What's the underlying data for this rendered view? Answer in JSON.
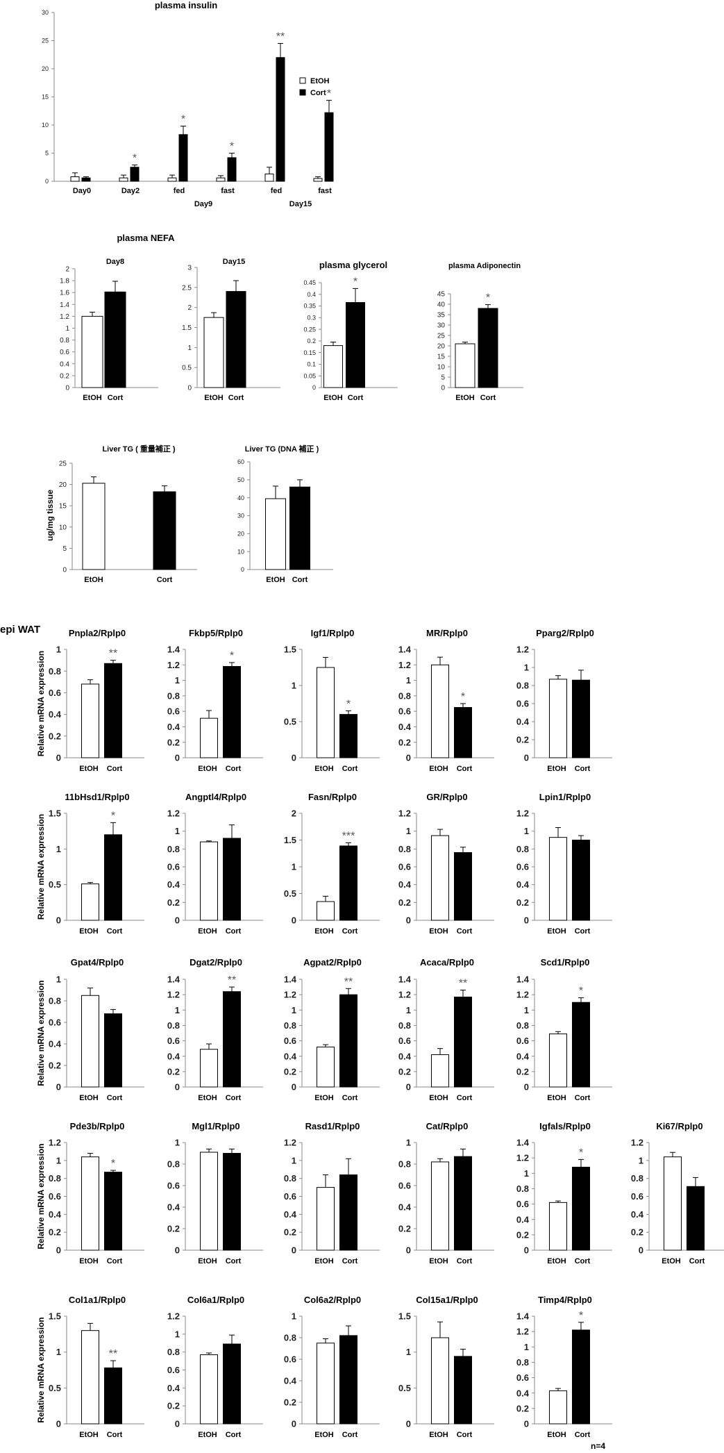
{
  "section_label": "epi WAT",
  "footnote": "n=4",
  "shared_ylabel": "Relative mRNA expression",
  "colors": {
    "etoh_fill": "#ffffff",
    "cort_fill": "#000000",
    "axis": "#888888",
    "star": "#555555"
  },
  "insulin_legend": {
    "etoh": "EtOH",
    "cort": "Cort"
  },
  "insulin_groups": [
    "Day9",
    "Day15"
  ],
  "chart_data": [
    {
      "id": "insulin",
      "type": "bar",
      "title": "plasma insulin",
      "ylabel": "",
      "ylim": [
        0,
        30
      ],
      "yticks": [
        "0",
        "5",
        "10",
        "15",
        "20",
        "25",
        "30"
      ],
      "categories": [
        "Day0",
        "Day2",
        "fed",
        "fast",
        "fed",
        "fast"
      ],
      "series": [
        {
          "name": "EtOH",
          "values": [
            0.8,
            0.6,
            0.6,
            0.6,
            1.3,
            0.5
          ],
          "errors": [
            0.7,
            0.5,
            0.5,
            0.4,
            1.2,
            0.3
          ]
        },
        {
          "name": "Cort",
          "values": [
            0.6,
            2.5,
            8.3,
            4.2,
            22,
            12.2
          ],
          "errors": [
            0.2,
            0.4,
            1.5,
            0.8,
            2.5,
            2.2
          ]
        }
      ],
      "stars": [
        "",
        "*",
        "*",
        "*",
        "**",
        "*"
      ]
    },
    {
      "id": "nefa8",
      "type": "bar",
      "title": "Day8",
      "ylabel": "",
      "ylim": [
        0,
        2
      ],
      "yticks": [
        "0",
        "0.2",
        "0.4",
        "0.6",
        "0.8",
        "1",
        "1.2",
        "1.4",
        "1.6",
        "1.8",
        "2"
      ],
      "categories": [
        "EtOH",
        "Cort"
      ],
      "values": [
        1.2,
        1.61
      ],
      "errors": [
        0.07,
        0.18
      ],
      "stars": [
        "",
        ""
      ]
    },
    {
      "id": "nefa15",
      "type": "bar",
      "title": "Day15",
      "ylabel": "",
      "ylim": [
        0,
        3
      ],
      "yticks": [
        "0",
        "0.5",
        "1",
        "1.5",
        "2",
        "2.5",
        "3"
      ],
      "categories": [
        "EtOH",
        "Cort"
      ],
      "values": [
        1.75,
        2.4
      ],
      "errors": [
        0.12,
        0.27
      ],
      "stars": [
        "",
        ""
      ]
    },
    {
      "id": "glycerol",
      "type": "bar",
      "title": "plasma glycerol",
      "ylabel": "",
      "ylim": [
        0,
        0.45
      ],
      "yticks": [
        "0",
        "0.05",
        "0.1",
        "0.15",
        "0.2",
        "0.25",
        "0.3",
        "0.35",
        "0.4",
        "0.45"
      ],
      "categories": [
        "EtOH",
        "Cort"
      ],
      "values": [
        0.18,
        0.365
      ],
      "errors": [
        0.015,
        0.06
      ],
      "stars": [
        "",
        "*"
      ]
    },
    {
      "id": "adipo",
      "type": "bar",
      "title": "plasma Adiponectin",
      "ylabel": "",
      "ylim": [
        0,
        45
      ],
      "yticks": [
        "0",
        "5",
        "10",
        "15",
        "20",
        "25",
        "30",
        "35",
        "40",
        "45"
      ],
      "categories": [
        "EtOH",
        "Cort"
      ],
      "values": [
        21,
        38
      ],
      "errors": [
        0.8,
        1.8
      ],
      "stars": [
        "",
        "*"
      ]
    },
    {
      "id": "livertg1",
      "type": "bar",
      "title": "Liver TG ( 重量補正 )",
      "ylabel": "ug/mg tissue",
      "ylim": [
        0,
        25
      ],
      "yticks": [
        "0",
        "5",
        "10",
        "15",
        "20",
        "25"
      ],
      "categories": [
        "EtOH",
        "Cort"
      ],
      "values": [
        20.3,
        18.3
      ],
      "errors": [
        1.5,
        1.4
      ],
      "stars": [
        "",
        ""
      ]
    },
    {
      "id": "livertg2",
      "type": "bar",
      "title": "Liver TG (DNA 補正 )",
      "ylabel": "",
      "ylim": [
        0,
        60
      ],
      "yticks": [
        "0",
        "10",
        "20",
        "30",
        "40",
        "50",
        "60"
      ],
      "categories": [
        "EtOH",
        "Cort"
      ],
      "values": [
        39.5,
        46
      ],
      "errors": [
        7,
        4
      ],
      "stars": [
        "",
        ""
      ]
    },
    {
      "id": "pnpla2",
      "type": "bar",
      "title": "Pnpla2/Rplp0",
      "ylabel": "Relative mRNA expression",
      "ylim": [
        0,
        1
      ],
      "yticks": [
        "0",
        "0.2",
        "0.4",
        "0.6",
        "0.8",
        "1"
      ],
      "categories": [
        "EtOH",
        "Cort"
      ],
      "values": [
        0.68,
        0.87
      ],
      "errors": [
        0.04,
        0.03
      ],
      "stars": [
        "",
        "**"
      ]
    },
    {
      "id": "fkbp5",
      "type": "bar",
      "title": "Fkbp5/Rplp0",
      "ylabel": "",
      "ylim": [
        0,
        1.4
      ],
      "yticks": [
        "0",
        "0.2",
        "0.4",
        "0.6",
        "0.8",
        "1",
        "1.2",
        "1.4"
      ],
      "categories": [
        "EtOH",
        "Cort"
      ],
      "values": [
        0.51,
        1.18
      ],
      "errors": [
        0.1,
        0.05
      ],
      "stars": [
        "",
        "*"
      ]
    },
    {
      "id": "igf1",
      "type": "bar",
      "title": "Igf1/Rplp0",
      "ylabel": "",
      "ylim": [
        0,
        1.5
      ],
      "yticks": [
        "0",
        "0.5",
        "1",
        "1.5"
      ],
      "categories": [
        "EtOH",
        "Cort"
      ],
      "values": [
        1.25,
        0.6
      ],
      "errors": [
        0.14,
        0.05
      ],
      "stars": [
        "",
        "*"
      ]
    },
    {
      "id": "mr",
      "type": "bar",
      "title": "MR/Rplp0",
      "ylabel": "",
      "ylim": [
        0,
        1.4
      ],
      "yticks": [
        "0",
        "0.2",
        "0.4",
        "0.6",
        "0.8",
        "1",
        "1.2",
        "1.4"
      ],
      "categories": [
        "EtOH",
        "Cort"
      ],
      "values": [
        1.2,
        0.65
      ],
      "errors": [
        0.1,
        0.05
      ],
      "stars": [
        "",
        "*"
      ]
    },
    {
      "id": "pparg2",
      "type": "bar",
      "title": "Pparg2/Rplp0",
      "ylabel": "",
      "ylim": [
        0,
        1.2
      ],
      "yticks": [
        "0",
        "0.2",
        "0.4",
        "0.6",
        "0.8",
        "1",
        "1.2"
      ],
      "categories": [
        "EtOH",
        "Cort"
      ],
      "values": [
        0.87,
        0.86
      ],
      "errors": [
        0.04,
        0.11
      ],
      "stars": [
        "",
        ""
      ]
    },
    {
      "id": "hsd11b1",
      "type": "bar",
      "title": "11bHsd1/Rplp0",
      "ylabel": "Relative mRNA expression",
      "ylim": [
        0,
        1.5
      ],
      "yticks": [
        "0",
        "0.5",
        "1",
        "1.5"
      ],
      "categories": [
        "EtOH",
        "Cort"
      ],
      "values": [
        0.51,
        1.2
      ],
      "errors": [
        0.02,
        0.17
      ],
      "stars": [
        "",
        "*"
      ]
    },
    {
      "id": "angptl4",
      "type": "bar",
      "title": "Angptl4/Rplp0",
      "ylabel": "",
      "ylim": [
        0,
        1.2
      ],
      "yticks": [
        "0",
        "0.2",
        "0.4",
        "0.6",
        "0.8",
        "1",
        "1.2"
      ],
      "categories": [
        "EtOH",
        "Cort"
      ],
      "values": [
        0.88,
        0.92
      ],
      "errors": [
        0.01,
        0.15
      ],
      "stars": [
        "",
        ""
      ]
    },
    {
      "id": "fasn",
      "type": "bar",
      "title": "Fasn/Rplp0",
      "ylabel": "",
      "ylim": [
        0,
        2
      ],
      "yticks": [
        "0",
        "0.5",
        "1",
        "1.5",
        "2"
      ],
      "categories": [
        "EtOH",
        "Cort"
      ],
      "values": [
        0.35,
        1.39
      ],
      "errors": [
        0.1,
        0.06
      ],
      "stars": [
        "",
        "***"
      ]
    },
    {
      "id": "gr",
      "type": "bar",
      "title": "GR/Rplp0",
      "ylabel": "",
      "ylim": [
        0,
        1.2
      ],
      "yticks": [
        "0",
        "0.2",
        "0.4",
        "0.6",
        "0.8",
        "1",
        "1.2"
      ],
      "categories": [
        "EtOH",
        "Cort"
      ],
      "values": [
        0.95,
        0.76
      ],
      "errors": [
        0.07,
        0.06
      ],
      "stars": [
        "",
        ""
      ]
    },
    {
      "id": "lpin1",
      "type": "bar",
      "title": "Lpin1/Rplp0",
      "ylabel": "",
      "ylim": [
        0,
        1.2
      ],
      "yticks": [
        "0",
        "0.2",
        "0.4",
        "0.6",
        "0.8",
        "1",
        "1.2"
      ],
      "categories": [
        "EtOH",
        "Cort"
      ],
      "values": [
        0.93,
        0.9
      ],
      "errors": [
        0.11,
        0.05
      ],
      "stars": [
        "",
        ""
      ]
    },
    {
      "id": "gpat4",
      "type": "bar",
      "title": "Gpat4/Rplp0",
      "ylabel": "Relative mRNA expression",
      "ylim": [
        0,
        1
      ],
      "yticks": [
        "0",
        "0.2",
        "0.4",
        "0.6",
        "0.8",
        "1"
      ],
      "categories": [
        "EtOH",
        "Cort"
      ],
      "values": [
        0.85,
        0.68
      ],
      "errors": [
        0.07,
        0.04
      ],
      "stars": [
        "",
        ""
      ]
    },
    {
      "id": "dgat2",
      "type": "bar",
      "title": "Dgat2/Rplp0",
      "ylabel": "",
      "ylim": [
        0,
        1.4
      ],
      "yticks": [
        "0",
        "0.2",
        "0.4",
        "0.6",
        "0.8",
        "1",
        "1.2",
        "1.4"
      ],
      "categories": [
        "EtOH",
        "Cort"
      ],
      "values": [
        0.49,
        1.24
      ],
      "errors": [
        0.07,
        0.06
      ],
      "stars": [
        "",
        "**"
      ]
    },
    {
      "id": "agpat2",
      "type": "bar",
      "title": "Agpat2/Rplp0",
      "ylabel": "",
      "ylim": [
        0,
        1.4
      ],
      "yticks": [
        "0",
        "0.2",
        "0.4",
        "0.6",
        "0.8",
        "1",
        "1.2",
        "1.4"
      ],
      "categories": [
        "EtOH",
        "Cort"
      ],
      "values": [
        0.52,
        1.2
      ],
      "errors": [
        0.03,
        0.08
      ],
      "stars": [
        "",
        "**"
      ]
    },
    {
      "id": "acaca",
      "type": "bar",
      "title": "Acaca/Rplp0",
      "ylabel": "",
      "ylim": [
        0,
        1.4
      ],
      "yticks": [
        "0",
        "0.2",
        "0.4",
        "0.6",
        "0.8",
        "1",
        "1.2",
        "1.4"
      ],
      "categories": [
        "EtOH",
        "Cort"
      ],
      "values": [
        0.42,
        1.17
      ],
      "errors": [
        0.08,
        0.09
      ],
      "stars": [
        "",
        "**"
      ]
    },
    {
      "id": "scd1",
      "type": "bar",
      "title": "Scd1/Rplp0",
      "ylabel": "",
      "ylim": [
        0,
        1.4
      ],
      "yticks": [
        "0",
        "0.2",
        "0.4",
        "0.6",
        "0.8",
        "1",
        "1.2",
        "1.4"
      ],
      "categories": [
        "EtOH",
        "Cort"
      ],
      "values": [
        0.69,
        1.1
      ],
      "errors": [
        0.03,
        0.06
      ],
      "stars": [
        "",
        "*"
      ]
    },
    {
      "id": "pde3b",
      "type": "bar",
      "title": "Pde3b/Rplp0",
      "ylabel": "Relative mRNA expression",
      "ylim": [
        0,
        1.2
      ],
      "yticks": [
        "0",
        "0.2",
        "0.4",
        "0.6",
        "0.8",
        "1",
        "1.2"
      ],
      "categories": [
        "EtOH",
        "Cort"
      ],
      "values": [
        1.04,
        0.87
      ],
      "errors": [
        0.04,
        0.02
      ],
      "stars": [
        "",
        "*"
      ]
    },
    {
      "id": "mgl1",
      "type": "bar",
      "title": "Mgl1/Rplp0",
      "ylabel": "",
      "ylim": [
        0,
        1
      ],
      "yticks": [
        "0",
        "0.2",
        "0.4",
        "0.6",
        "0.8",
        "1"
      ],
      "categories": [
        "EtOH",
        "Cort"
      ],
      "values": [
        0.91,
        0.9
      ],
      "errors": [
        0.03,
        0.04
      ],
      "stars": [
        "",
        ""
      ]
    },
    {
      "id": "rasd1",
      "type": "bar",
      "title": "Rasd1/Rplp0",
      "ylabel": "",
      "ylim": [
        0,
        1.2
      ],
      "yticks": [
        "0",
        "0.2",
        "0.4",
        "0.6",
        "0.8",
        "1",
        "1.2"
      ],
      "categories": [
        "EtOH",
        "Cort"
      ],
      "values": [
        0.7,
        0.84
      ],
      "errors": [
        0.14,
        0.18
      ],
      "stars": [
        "",
        ""
      ]
    },
    {
      "id": "cat",
      "type": "bar",
      "title": "Cat/Rplp0",
      "ylabel": "",
      "ylim": [
        0,
        1
      ],
      "yticks": [
        "0",
        "0.2",
        "0.4",
        "0.6",
        "0.8",
        "1"
      ],
      "categories": [
        "EtOH",
        "Cort"
      ],
      "values": [
        0.82,
        0.87
      ],
      "errors": [
        0.03,
        0.07
      ],
      "stars": [
        "",
        ""
      ]
    },
    {
      "id": "igfals",
      "type": "bar",
      "title": "Igfals/Rplp0",
      "ylabel": "",
      "ylim": [
        0,
        1.4
      ],
      "yticks": [
        "0",
        "0.2",
        "0.4",
        "0.6",
        "0.8",
        "1",
        "1.2",
        "1.4"
      ],
      "categories": [
        "EtOH",
        "Cort"
      ],
      "values": [
        0.62,
        1.08
      ],
      "errors": [
        0.02,
        0.1
      ],
      "stars": [
        "",
        "*"
      ]
    },
    {
      "id": "ki67",
      "type": "bar",
      "title": "Ki67/Rplp0",
      "ylabel": "",
      "ylim": [
        0,
        1.2
      ],
      "yticks": [
        "0",
        "0.2",
        "0.4",
        "0.6",
        "0.8",
        "1",
        "1.2"
      ],
      "categories": [
        "EtOH",
        "Cort"
      ],
      "values": [
        1.04,
        0.71
      ],
      "errors": [
        0.05,
        0.1
      ],
      "stars": [
        "",
        ""
      ]
    },
    {
      "id": "col1a1",
      "type": "bar",
      "title": "Col1a1/Rplp0",
      "ylabel": "Relative mRNA expression",
      "ylim": [
        0,
        1.5
      ],
      "yticks": [
        "0",
        "0.5",
        "1",
        "1.5"
      ],
      "categories": [
        "EtOH",
        "Cort"
      ],
      "values": [
        1.3,
        0.78
      ],
      "errors": [
        0.1,
        0.1
      ],
      "stars": [
        "",
        "**"
      ]
    },
    {
      "id": "col6a1",
      "type": "bar",
      "title": "Col6a1/Rplp0",
      "ylabel": "",
      "ylim": [
        0,
        1.2
      ],
      "yticks": [
        "0",
        "0.2",
        "0.4",
        "0.6",
        "0.8",
        "1",
        "1.2"
      ],
      "categories": [
        "EtOH",
        "Cort"
      ],
      "values": [
        0.77,
        0.89
      ],
      "errors": [
        0.02,
        0.1
      ],
      "stars": [
        "",
        ""
      ]
    },
    {
      "id": "col6a2",
      "type": "bar",
      "title": "Col6a2/Rplp0",
      "ylabel": "",
      "ylim": [
        0,
        1
      ],
      "yticks": [
        "0",
        "0.2",
        "0.4",
        "0.6",
        "0.8",
        "1"
      ],
      "categories": [
        "EtOH",
        "Cort"
      ],
      "values": [
        0.75,
        0.82
      ],
      "errors": [
        0.04,
        0.09
      ],
      "stars": [
        "",
        ""
      ]
    },
    {
      "id": "col15a1",
      "type": "bar",
      "title": "Col15a1/Rplp0",
      "ylabel": "",
      "ylim": [
        0,
        1.5
      ],
      "yticks": [
        "0",
        "0.5",
        "1",
        "1.5"
      ],
      "categories": [
        "EtOH",
        "Cort"
      ],
      "values": [
        1.2,
        0.94
      ],
      "errors": [
        0.22,
        0.1
      ],
      "stars": [
        "",
        ""
      ]
    },
    {
      "id": "timp4",
      "type": "bar",
      "title": "Timp4/Rplp0",
      "ylabel": "",
      "ylim": [
        0,
        1.4
      ],
      "yticks": [
        "0",
        "0.2",
        "0.4",
        "0.6",
        "0.8",
        "1",
        "1.2",
        "1.4"
      ],
      "categories": [
        "EtOH",
        "Cort"
      ],
      "values": [
        0.43,
        1.22
      ],
      "errors": [
        0.03,
        0.1
      ],
      "stars": [
        "",
        "*"
      ]
    }
  ]
}
